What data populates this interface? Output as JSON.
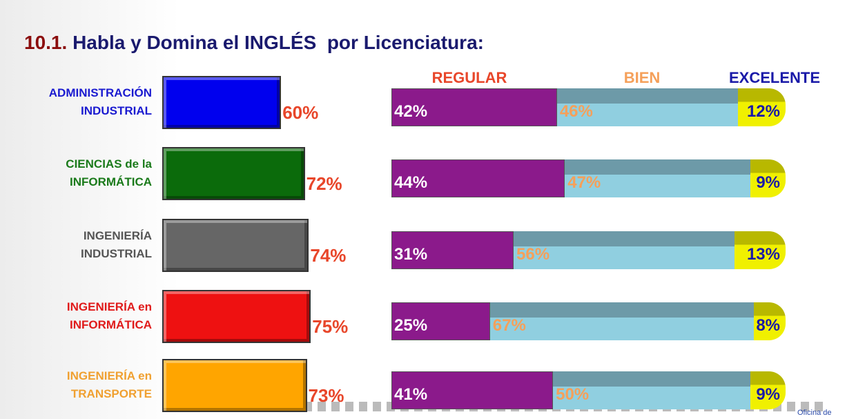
{
  "chart_data": [
    {
      "type": "bar",
      "title_number": "10.1.",
      "title": "Habla y Domina el INGLÉS  por Licenciatura:",
      "categories": [
        "ADMINISTRACIÓN\nINDUSTRIAL",
        "CIENCIAS de la\nINFORMÁTICA",
        "INGENIERÍA\nINDUSTRIAL",
        "INGENIERÍA en\nINFORMÁTICA",
        "INGENIERÍA en\nTRANSPORTE"
      ],
      "values": [
        60,
        72,
        74,
        75,
        73
      ],
      "value_labels": [
        "60%",
        "72%",
        "74%",
        "75%",
        "73%"
      ],
      "colors": [
        "#0000ee",
        "#0b6b0b",
        "#666666",
        "#ee1111",
        "#ffa500"
      ],
      "label_colors": [
        "#1a1ad0",
        "#1a7a1a",
        "#555555",
        "#e01a1a",
        "#f0a030"
      ]
    },
    {
      "type": "stacked_bar",
      "series": [
        {
          "name": "REGULAR",
          "color": "#8b1a8b",
          "label_color": "#e8462a",
          "values": [
            42,
            44,
            31,
            25,
            41
          ],
          "value_labels": [
            "42%",
            "44%",
            "31%",
            "25%",
            "41%"
          ]
        },
        {
          "name": "BIEN",
          "color": "#90cfe0",
          "label_color": "#f5a05a",
          "values": [
            46,
            47,
            56,
            67,
            50
          ],
          "value_labels": [
            "46%",
            "47%",
            "56%",
            "67%",
            "50%"
          ]
        },
        {
          "name": "EXCELENTE",
          "color": "#f0f000",
          "label_color": "#1a1aa8",
          "values": [
            12,
            9,
            13,
            8,
            9
          ],
          "value_labels": [
            "12%",
            "9%",
            "13%",
            "8%",
            "9%"
          ]
        }
      ]
    }
  ],
  "footer": "Oficina de"
}
